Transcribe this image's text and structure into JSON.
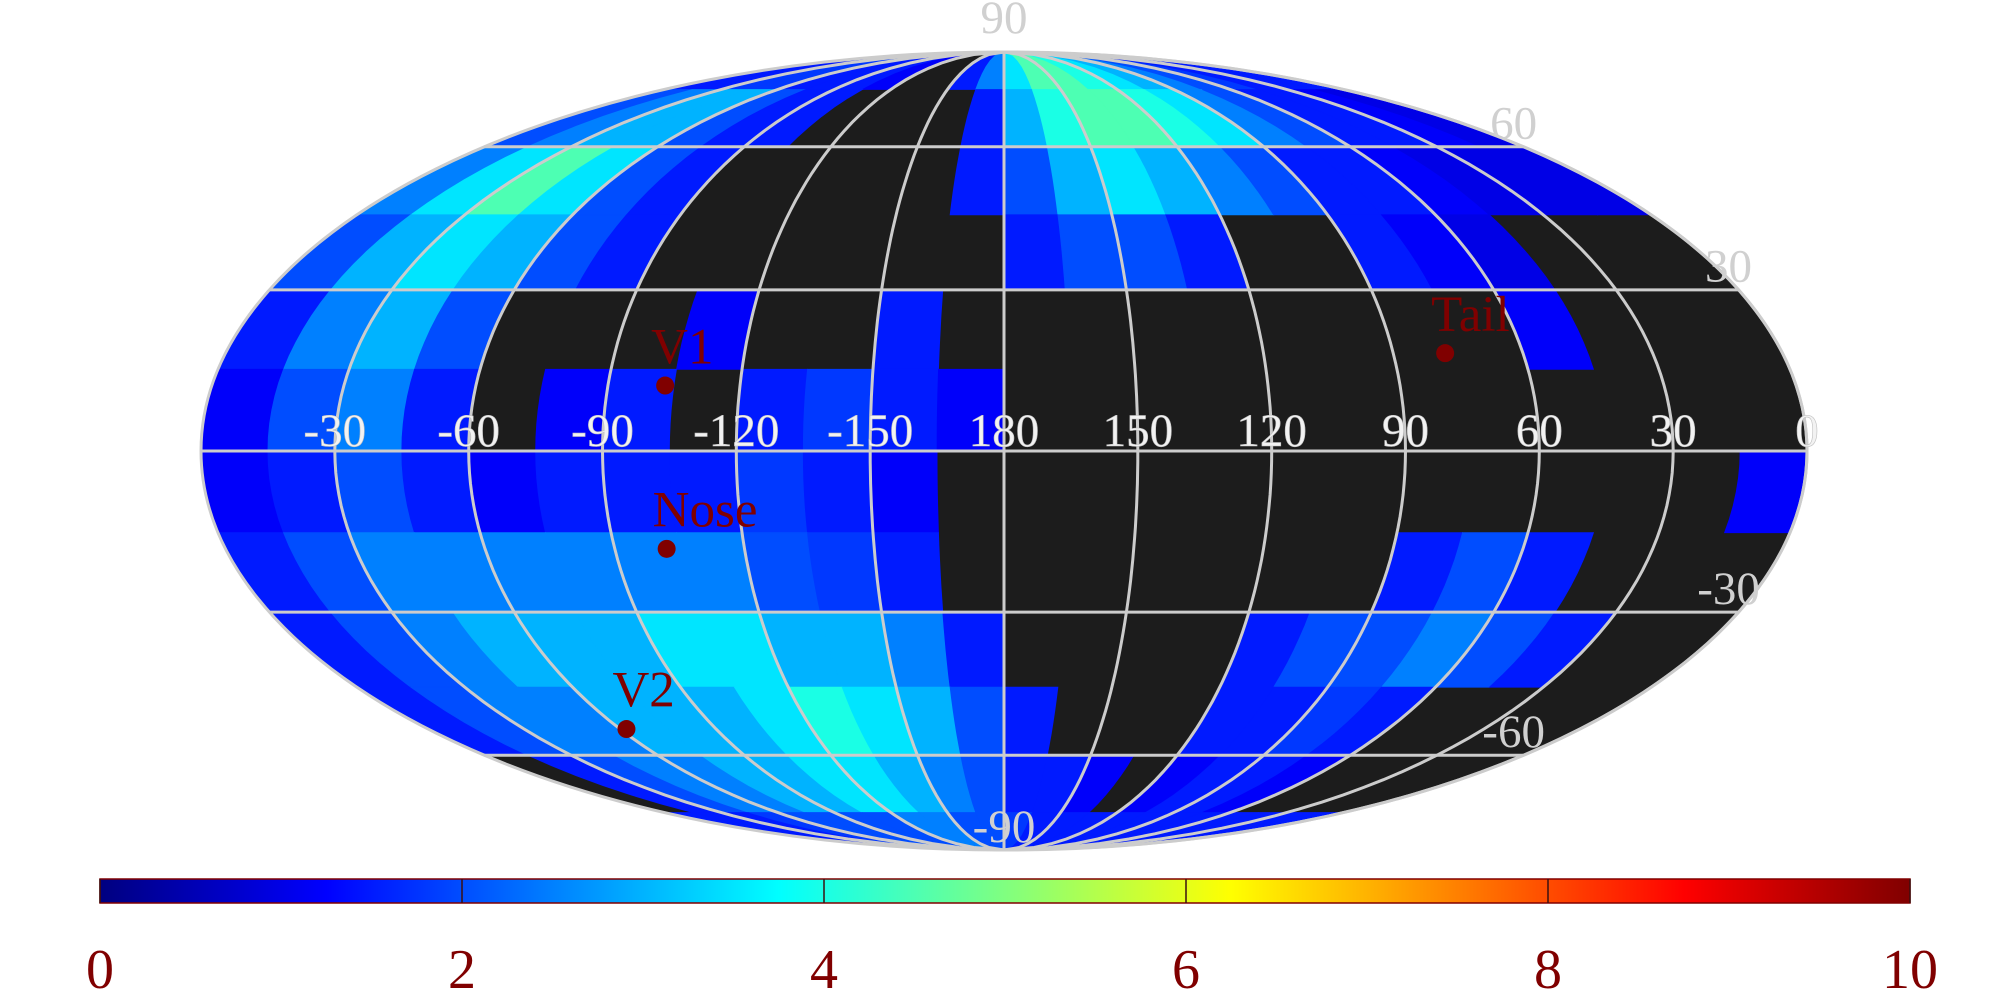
{
  "chart_data": {
    "type": "heatmap",
    "projection": "mollweide",
    "xlim": [
      360,
      0
    ],
    "ylim": [
      -90,
      90
    ],
    "xticks": [
      -30,
      -60,
      -90,
      -120,
      -150,
      180,
      150,
      120,
      90,
      60,
      30,
      0
    ],
    "yticks": [
      90,
      60,
      30,
      -30,
      -60,
      -90
    ],
    "grid": true,
    "x_bins": [
      360,
      345,
      330,
      315,
      300,
      285,
      270,
      255,
      240,
      225,
      210,
      195,
      180,
      165,
      150,
      135,
      120,
      105,
      90,
      75,
      60,
      45,
      30,
      15,
      0
    ],
    "y_bins": [
      90,
      75,
      60,
      45,
      30,
      15,
      0,
      -15,
      -30,
      -45,
      -60,
      -75,
      -90
    ],
    "z": [
      [
        1.5,
        1.5,
        1.8,
        1.8,
        1.5,
        1.5,
        1.5,
        1.2,
        null,
        null,
        1.5,
        2.5,
        3.5,
        4.5,
        4.5,
        4,
        3.5,
        3,
        2.5,
        2,
        1.8,
        1.5,
        1.5,
        1.5
      ],
      [
        2,
        2.5,
        3,
        3,
        2,
        1.5,
        1.5,
        null,
        null,
        null,
        null,
        1.5,
        3,
        4,
        4.5,
        4.5,
        4,
        3.5,
        2.5,
        2,
        1.5,
        1.5,
        1.2,
        1
      ],
      [
        2.5,
        3.5,
        4.5,
        3.5,
        2,
        1.5,
        null,
        null,
        null,
        null,
        null,
        1.5,
        2,
        3,
        3.5,
        3,
        2.5,
        2,
        1.5,
        1.5,
        1.2,
        1,
        1,
        1
      ],
      [
        2,
        3,
        3.5,
        3,
        2,
        1.5,
        null,
        null,
        null,
        null,
        null,
        null,
        1.5,
        2,
        2,
        1.5,
        null,
        null,
        1.5,
        1.2,
        1,
        null,
        null,
        null
      ],
      [
        1.5,
        2.5,
        3,
        2,
        null,
        null,
        null,
        1.2,
        null,
        null,
        1.5,
        null,
        null,
        null,
        null,
        null,
        null,
        null,
        null,
        null,
        1.2,
        null,
        null,
        null
      ],
      [
        1.2,
        2,
        2.5,
        1.5,
        null,
        1.2,
        1.5,
        null,
        1.5,
        1.8,
        1.5,
        1.2,
        null,
        null,
        null,
        null,
        null,
        null,
        null,
        null,
        null,
        null,
        null,
        null
      ],
      [
        1.2,
        1.5,
        2,
        1.5,
        1.2,
        1.5,
        1.5,
        1.5,
        1.8,
        1.5,
        1.2,
        null,
        null,
        null,
        null,
        null,
        null,
        null,
        null,
        null,
        null,
        null,
        null,
        1.2
      ],
      [
        1.5,
        2,
        2.5,
        2.5,
        2.5,
        2.5,
        2.5,
        2.5,
        2,
        1.8,
        1.5,
        null,
        null,
        null,
        null,
        null,
        null,
        null,
        1.5,
        2,
        1.5,
        null,
        null,
        null
      ],
      [
        1.5,
        2,
        2.5,
        3,
        3,
        3,
        3.5,
        3.5,
        3,
        3,
        2.5,
        1.5,
        null,
        null,
        null,
        null,
        1.5,
        2,
        2,
        2.5,
        2,
        1.5,
        null,
        null
      ],
      [
        1.5,
        2,
        2.5,
        2.5,
        3,
        3,
        3,
        3.5,
        4,
        3.5,
        3,
        2,
        1.5,
        null,
        null,
        null,
        1.5,
        1.5,
        1.8,
        1.5,
        null,
        null,
        null,
        null
      ],
      [
        null,
        1.5,
        2,
        2.5,
        2.5,
        3,
        3,
        3.5,
        3.5,
        3,
        2.5,
        2,
        1.5,
        1.5,
        1.2,
        null,
        1.2,
        1.5,
        1.5,
        1.2,
        null,
        null,
        null,
        null
      ],
      [
        1.5,
        1.5,
        1.5,
        1.8,
        2,
        2,
        2,
        2,
        2.5,
        2.5,
        2,
        2,
        1.8,
        1.5,
        1.5,
        1.5,
        1.5,
        1.5,
        1.5,
        1.5,
        1.5,
        1.5,
        1.5,
        1.5
      ]
    ],
    "colormap": "jet",
    "clim": [
      0,
      10
    ],
    "colorbar_ticks": [
      0,
      2,
      4,
      6,
      8,
      10
    ],
    "points": [
      {
        "name": "V1",
        "x": -103,
        "y": 12,
        "color": "#800000"
      },
      {
        "name": "Nose",
        "x": -102,
        "y": -18,
        "color": "#800000"
      },
      {
        "name": "Tail",
        "x": 78,
        "y": 18,
        "color": "#800000"
      },
      {
        "name": "V2",
        "x": -62,
        "y": -54,
        "color": "#800000"
      }
    ]
  }
}
